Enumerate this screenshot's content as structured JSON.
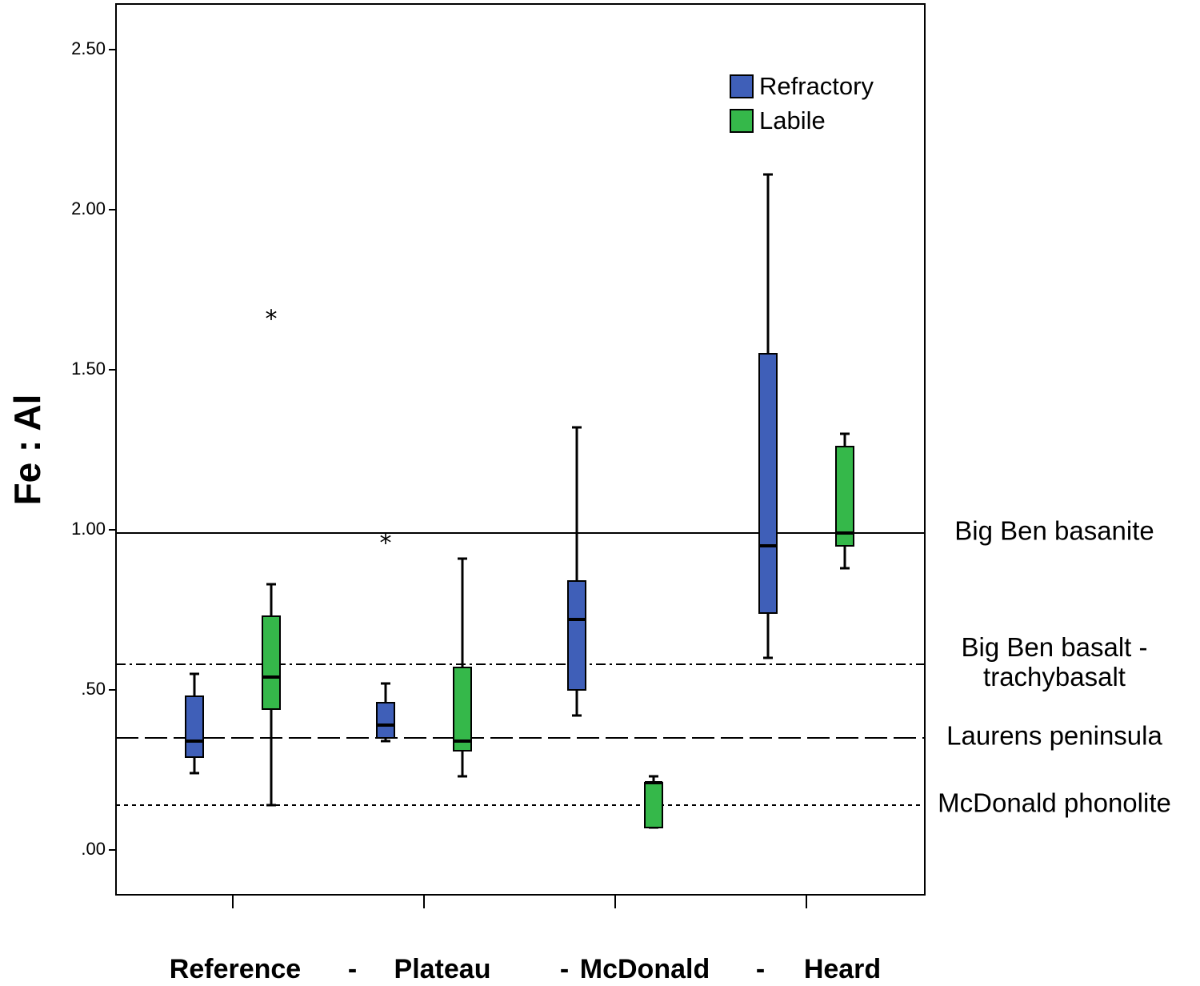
{
  "chart_data": {
    "type": "box",
    "ylabel": "Fe : Al",
    "ylim": [
      -0.14,
      2.64
    ],
    "yticks": [
      {
        "value": 0.0,
        "label": ".00"
      },
      {
        "value": 0.5,
        "label": ".50"
      },
      {
        "value": 1.0,
        "label": "1.00"
      },
      {
        "value": 1.5,
        "label": "1.50"
      },
      {
        "value": 2.0,
        "label": "2.00"
      },
      {
        "value": 2.5,
        "label": "2.50"
      }
    ],
    "categories": [
      "Reference",
      "Plateau",
      "McDonald",
      "Heard"
    ],
    "separator": "-",
    "legend_position": "top-right",
    "series": [
      {
        "name": "Refractory",
        "color": "#3f5fb8",
        "boxes": [
          {
            "min": 0.24,
            "q1": 0.29,
            "median": 0.34,
            "q3": 0.48,
            "max": 0.55,
            "outliers": []
          },
          {
            "min": 0.34,
            "q1": 0.35,
            "median": 0.39,
            "q3": 0.46,
            "max": 0.52,
            "outliers": [
              0.98
            ]
          },
          {
            "min": 0.42,
            "q1": 0.5,
            "median": 0.72,
            "q3": 0.84,
            "max": 1.32,
            "outliers": []
          },
          {
            "min": 0.6,
            "q1": 0.74,
            "median": 0.95,
            "q3": 1.55,
            "max": 2.11,
            "outliers": []
          }
        ]
      },
      {
        "name": "Labile",
        "color": "#35b84a",
        "boxes": [
          {
            "min": 0.14,
            "q1": 0.44,
            "median": 0.54,
            "q3": 0.73,
            "max": 0.83,
            "outliers": [
              1.68
            ]
          },
          {
            "min": 0.23,
            "q1": 0.31,
            "median": 0.34,
            "q3": 0.57,
            "max": 0.91,
            "outliers": []
          },
          {
            "min": 0.07,
            "q1": 0.07,
            "median": 0.21,
            "q3": 0.21,
            "max": 0.23,
            "outliers": []
          },
          {
            "min": 0.88,
            "q1": 0.95,
            "median": 0.99,
            "q3": 1.26,
            "max": 1.3,
            "outliers": []
          }
        ]
      }
    ],
    "reference_lines": [
      {
        "label": "Big Ben basanite",
        "lines": [
          "Big Ben basanite"
        ],
        "value": 0.99,
        "style": "solid"
      },
      {
        "label": "Big Ben basalt - trachybasalt",
        "lines": [
          "Big Ben basalt -",
          "trachybasalt"
        ],
        "value": 0.58,
        "style": "dash-dot"
      },
      {
        "label": "Laurens peninsula",
        "lines": [
          "Laurens peninsula"
        ],
        "value": 0.35,
        "style": "long-dash"
      },
      {
        "label": "McDonald phonolite",
        "lines": [
          "McDonald phonolite"
        ],
        "value": 0.14,
        "style": "dotted"
      }
    ]
  }
}
